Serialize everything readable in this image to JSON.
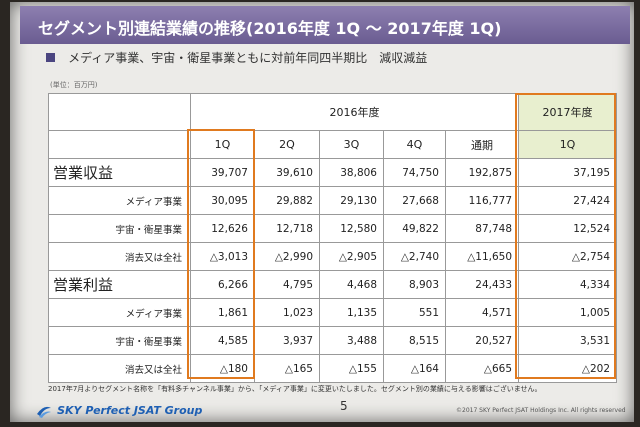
{
  "title": "セグメント別連結業績の推移(2016年度 1Q ～ 2017年度 1Q)",
  "subtitle": "メディア事業、宇宙・衛星事業ともに対前年同四半期比　減収減益",
  "unit": "(単位：百万円)",
  "table": {
    "period_2016": "2016年度",
    "period_2017": "2017年度",
    "columns": [
      "1Q",
      "2Q",
      "3Q",
      "4Q",
      "通期",
      "1Q"
    ],
    "sections": [
      {
        "label": "営業収益",
        "total": [
          "39,707",
          "39,610",
          "38,806",
          "74,750",
          "192,875",
          "37,195"
        ],
        "rows": [
          {
            "label": "メディア事業",
            "values": [
              "30,095",
              "29,882",
              "29,130",
              "27,668",
              "116,777",
              "27,424"
            ]
          },
          {
            "label": "宇宙・衛星事業",
            "values": [
              "12,626",
              "12,718",
              "12,580",
              "49,822",
              "87,748",
              "12,524"
            ]
          },
          {
            "label": "消去又は全社",
            "values": [
              "△3,013",
              "△2,990",
              "△2,905",
              "△2,740",
              "△11,650",
              "△2,754"
            ]
          }
        ]
      },
      {
        "label": "営業利益",
        "total": [
          "6,266",
          "4,795",
          "4,468",
          "8,903",
          "24,433",
          "4,334"
        ],
        "rows": [
          {
            "label": "メディア事業",
            "values": [
              "1,861",
              "1,023",
              "1,135",
              "551",
              "4,571",
              "1,005"
            ]
          },
          {
            "label": "宇宙・衛星事業",
            "values": [
              "4,585",
              "3,937",
              "3,488",
              "8,515",
              "20,527",
              "3,531"
            ]
          },
          {
            "label": "消去又は全社",
            "values": [
              "△180",
              "△165",
              "△155",
              "△164",
              "△665",
              "△202"
            ]
          }
        ]
      }
    ]
  },
  "footnote": "2017年7月よりセグメント名称を「有料多チャンネル事業」から、「メディア事業」に変更いたしました。セグメント別の業績に与える影響はございません。",
  "logo_text": "SKY Perfect JSAT Group",
  "page_number": "5",
  "copyright": "©2017 SKY Perfect JSAT Holdings Inc. All rights reserved",
  "colors": {
    "title_bar": "#6a5c91",
    "highlight": "#e07a1f",
    "accent_2017": "#e8efcf",
    "logo": "#1e5fb3"
  }
}
